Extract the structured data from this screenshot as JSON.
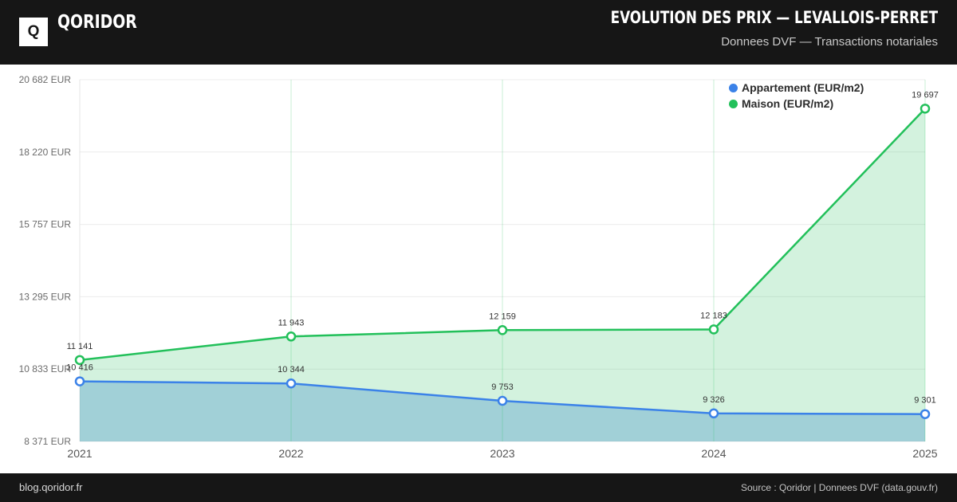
{
  "header": {
    "brand": "QORIDOR",
    "logo_letter": "Q",
    "title": "EVOLUTION DES PRIX — LEVALLOIS-PERRET",
    "subtitle": "Donnees DVF — Transactions notariales"
  },
  "footer": {
    "left": "blog.qoridor.fr",
    "right": "Source : Qoridor | Donnees DVF (data.gouv.fr)"
  },
  "colors": {
    "header_bg": "#161616",
    "appartement": "#3b82e8",
    "maison": "#22c05a"
  },
  "chart_data": {
    "type": "area",
    "categories": [
      "2021",
      "2022",
      "2023",
      "2024",
      "2025"
    ],
    "series": [
      {
        "name": "Appartement (EUR/m2)",
        "values": [
          10416,
          10344,
          9753,
          9326,
          9301
        ],
        "labels": [
          "10 416",
          "10 344",
          "9 753",
          "9 326",
          "9 301"
        ],
        "color": "#3b82e8"
      },
      {
        "name": "Maison (EUR/m2)",
        "values": [
          11141,
          11943,
          12159,
          12183,
          19697
        ],
        "labels": [
          "11 141",
          "11 943",
          "12 159",
          "12 183",
          "19 697"
        ],
        "color": "#22c05a"
      }
    ],
    "y_ticks": [
      8371,
      10833,
      13295,
      15757,
      18220,
      20682
    ],
    "y_tick_labels": [
      "8 371 EUR",
      "10 833 EUR",
      "13 295 EUR",
      "15 757 EUR",
      "18 220 EUR",
      "20 682 EUR"
    ],
    "ylim": [
      8371,
      20682
    ],
    "grid": true,
    "legend_position": "top-right"
  }
}
